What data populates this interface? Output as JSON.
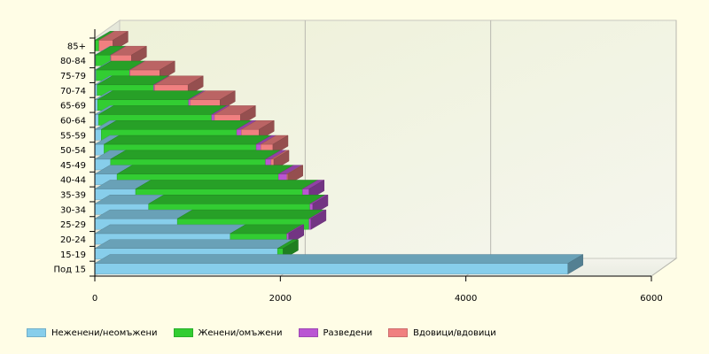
{
  "chart_data": {
    "type": "bar",
    "orientation": "horizontal",
    "stacked": true,
    "categories": [
      "Под 15",
      "15-19",
      "20-24",
      "25-29",
      "30-34",
      "35-39",
      "40-44",
      "45-49",
      "50-54",
      "55-59",
      "60-64",
      "65-69",
      "70-74",
      "75-79",
      "80-84",
      "85+"
    ],
    "series": [
      {
        "name": "Неженени/неомъжени",
        "color": "#87ceeb",
        "values": [
          5100,
          1970,
          1460,
          890,
          580,
          440,
          240,
          170,
          100,
          70,
          40,
          30,
          25,
          15,
          10,
          5
        ]
      },
      {
        "name": "Женени/омъжени",
        "color": "#32cd32",
        "values": [
          0,
          60,
          610,
          1420,
          1740,
          1800,
          1740,
          1670,
          1640,
          1460,
          1220,
          980,
          610,
          360,
          160,
          40
        ]
      },
      {
        "name": "Разведени",
        "color": "#ba55d3",
        "values": [
          0,
          0,
          20,
          20,
          30,
          70,
          90,
          60,
          50,
          50,
          30,
          20,
          10,
          5,
          5,
          0
        ]
      },
      {
        "name": "Вдовици/вдовици",
        "color": "#f08080",
        "values": [
          0,
          0,
          0,
          0,
          0,
          0,
          10,
          30,
          130,
          190,
          280,
          320,
          360,
          320,
          220,
          150
        ]
      }
    ],
    "x_ticks": [
      "0",
      "2000",
      "4000",
      "6000"
    ],
    "xlim": [
      0,
      6000
    ],
    "grid": true,
    "legend_position": "bottom",
    "title": "",
    "xlabel": "",
    "ylabel": ""
  }
}
